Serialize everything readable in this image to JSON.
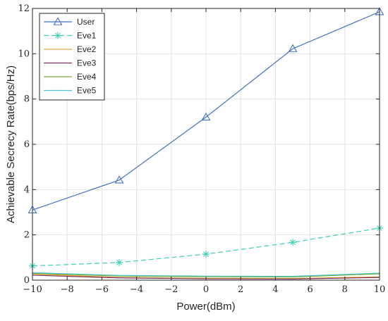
{
  "chart_data": {
    "type": "line",
    "xlabel": "Power(dBm)",
    "ylabel": "Achievable Secrecy Rate(bps/Hz)",
    "xlim": [
      -10,
      10
    ],
    "ylim": [
      0,
      12
    ],
    "x_ticks": [
      -10,
      -8,
      -6,
      -4,
      -2,
      0,
      2,
      4,
      6,
      8,
      10
    ],
    "y_ticks": [
      0,
      2,
      4,
      6,
      8,
      10,
      12
    ],
    "x_tick_labels": [
      "−10",
      "−8",
      "−6",
      "−4",
      "−2",
      "0",
      "2",
      "4",
      "6",
      "8",
      "10"
    ],
    "y_tick_labels": [
      "0",
      "2",
      "4",
      "6",
      "8",
      "10",
      "12"
    ],
    "grid": true,
    "legend_position": "top-left",
    "x": [
      -10,
      -5,
      0,
      5,
      10
    ],
    "series": [
      {
        "name": "User",
        "values": [
          3.1,
          4.42,
          7.2,
          10.22,
          11.85
        ],
        "color": "#4472c4",
        "marker": "triangle",
        "dash": "solid"
      },
      {
        "name": "Eve1",
        "values": [
          0.63,
          0.78,
          1.15,
          1.67,
          2.3
        ],
        "color": "#40d0b8",
        "marker": "asterisk",
        "dash": "dashed"
      },
      {
        "name": "Eve2",
        "values": [
          0.27,
          0.12,
          0.08,
          0.07,
          0.15
        ],
        "color": "#e8a33d",
        "marker": "none",
        "dash": "solid"
      },
      {
        "name": "Eve3",
        "values": [
          0.22,
          0.1,
          0.06,
          0.05,
          0.12
        ],
        "color": "#7a2e5a",
        "marker": "none",
        "dash": "solid"
      },
      {
        "name": "Eve4",
        "values": [
          0.3,
          0.18,
          0.15,
          0.14,
          0.28
        ],
        "color": "#77ac30",
        "marker": "none",
        "dash": "solid"
      },
      {
        "name": "Eve5",
        "values": [
          0.33,
          0.21,
          0.18,
          0.17,
          0.31
        ],
        "color": "#4fc2cf",
        "marker": "none",
        "dash": "solid"
      }
    ]
  }
}
